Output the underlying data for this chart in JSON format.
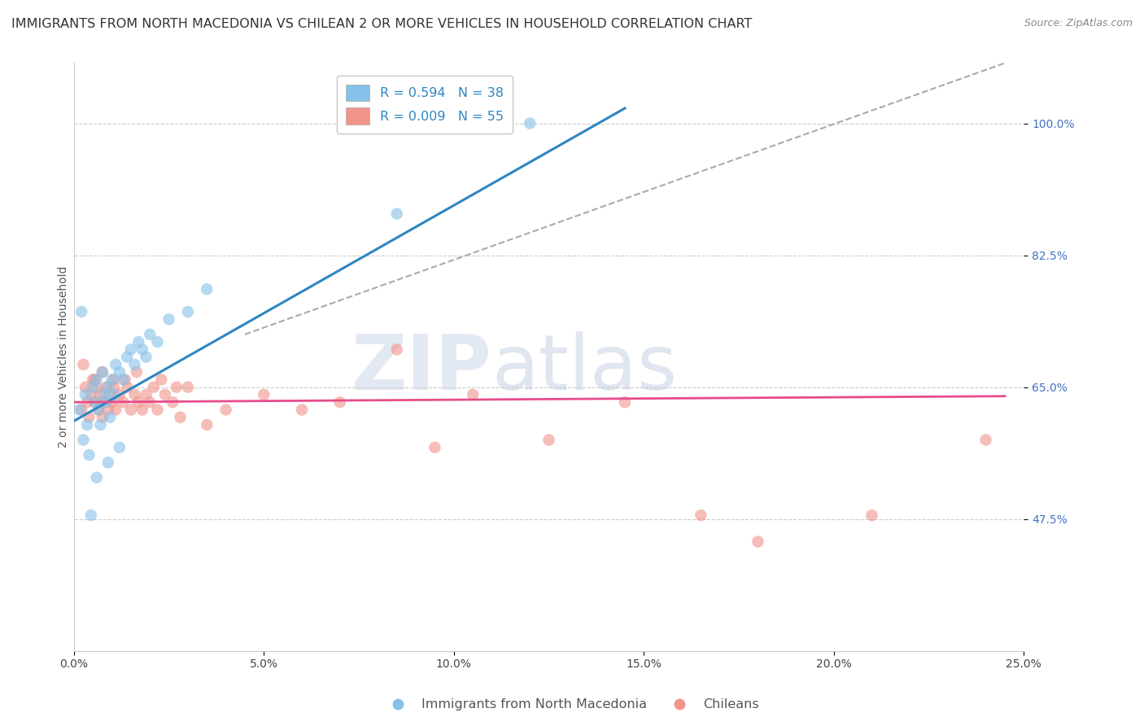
{
  "title": "IMMIGRANTS FROM NORTH MACEDONIA VS CHILEAN 2 OR MORE VEHICLES IN HOUSEHOLD CORRELATION CHART",
  "source": "Source: ZipAtlas.com",
  "ylabel": "2 or more Vehicles in Household",
  "xlim": [
    0.0,
    25.0
  ],
  "ylim": [
    30.0,
    108.0
  ],
  "yticks": [
    47.5,
    65.0,
    82.5,
    100.0
  ],
  "xticks": [
    0.0,
    5.0,
    10.0,
    15.0,
    20.0,
    25.0
  ],
  "xtick_labels": [
    "0.0%",
    "5.0%",
    "10.0%",
    "15.0%",
    "20.0%",
    "25.0%"
  ],
  "ytick_labels": [
    "47.5%",
    "65.0%",
    "82.5%",
    "100.0%"
  ],
  "legend1_label": "Immigrants from North Macedonia",
  "legend2_label": "Chileans",
  "r1": 0.594,
  "n1": 38,
  "r2": 0.009,
  "n2": 55,
  "blue_color": "#85c1e9",
  "pink_color": "#f1948a",
  "blue_line_color": "#2e86c1",
  "pink_line_color": "#e74c8b",
  "scatter_alpha": 0.6,
  "scatter_size": 110,
  "blue_scatter_x": [
    0.15,
    0.25,
    0.3,
    0.35,
    0.4,
    0.5,
    0.55,
    0.6,
    0.65,
    0.7,
    0.75,
    0.8,
    0.85,
    0.9,
    0.95,
    1.0,
    1.05,
    1.1,
    1.2,
    1.3,
    1.4,
    1.5,
    1.6,
    1.7,
    1.8,
    1.9,
    2.0,
    2.2,
    2.5,
    3.0,
    3.5,
    0.2,
    0.45,
    0.6,
    0.9,
    1.2,
    8.5,
    12.0
  ],
  "blue_scatter_y": [
    62.0,
    58.0,
    64.0,
    60.0,
    56.0,
    65.0,
    63.0,
    66.0,
    62.0,
    60.0,
    67.0,
    64.0,
    63.0,
    65.0,
    61.0,
    66.0,
    64.0,
    68.0,
    67.0,
    66.0,
    69.0,
    70.0,
    68.0,
    71.0,
    70.0,
    69.0,
    72.0,
    71.0,
    74.0,
    75.0,
    78.0,
    75.0,
    48.0,
    53.0,
    55.0,
    57.0,
    88.0,
    100.0
  ],
  "pink_scatter_x": [
    0.2,
    0.3,
    0.35,
    0.4,
    0.45,
    0.5,
    0.55,
    0.6,
    0.65,
    0.7,
    0.75,
    0.8,
    0.85,
    0.9,
    0.95,
    1.0,
    1.05,
    1.1,
    1.2,
    1.3,
    1.4,
    1.5,
    1.6,
    1.7,
    1.8,
    1.9,
    2.0,
    2.1,
    2.2,
    2.4,
    2.6,
    2.8,
    3.0,
    3.5,
    4.0,
    5.0,
    6.0,
    7.0,
    8.5,
    9.5,
    10.5,
    12.5,
    14.5,
    16.5,
    18.0,
    21.0,
    24.0,
    0.25,
    0.55,
    0.75,
    1.05,
    1.35,
    1.65,
    2.3,
    2.7
  ],
  "pink_scatter_y": [
    62.0,
    65.0,
    63.0,
    61.0,
    64.0,
    66.0,
    63.0,
    65.0,
    62.0,
    64.0,
    61.0,
    63.0,
    65.0,
    62.0,
    64.0,
    63.0,
    65.0,
    62.0,
    64.0,
    63.0,
    65.0,
    62.0,
    64.0,
    63.0,
    62.0,
    64.0,
    63.0,
    65.0,
    62.0,
    64.0,
    63.0,
    61.0,
    65.0,
    60.0,
    62.0,
    64.0,
    62.0,
    63.0,
    70.0,
    57.0,
    64.0,
    58.0,
    63.0,
    48.0,
    44.5,
    48.0,
    58.0,
    68.0,
    66.0,
    67.0,
    66.0,
    66.0,
    67.0,
    66.0,
    65.0
  ],
  "blue_line_x": [
    0.0,
    14.5
  ],
  "blue_line_y": [
    60.5,
    102.0
  ],
  "pink_line_x": [
    0.0,
    24.5
  ],
  "pink_line_y": [
    63.0,
    63.8
  ],
  "dash_line_x": [
    4.5,
    24.5
  ],
  "dash_line_y": [
    72.0,
    108.0
  ],
  "watermark_zip": "ZIP",
  "watermark_atlas": "atlas",
  "background_color": "#ffffff",
  "grid_color": "#cccccc",
  "title_fontsize": 11.5,
  "axis_label_fontsize": 10,
  "tick_fontsize": 10,
  "legend_fontsize": 11.5
}
